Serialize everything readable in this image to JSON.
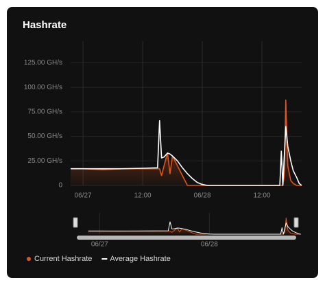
{
  "chart_data": {
    "type": "line",
    "title": "Hashrate",
    "x": [
      -2.5,
      0,
      4,
      8,
      12,
      15,
      15.4,
      15.8,
      16.3,
      17,
      17.5,
      18,
      19,
      20,
      21,
      22,
      23,
      24,
      25,
      30,
      35,
      39.3,
      39.6,
      39.9,
      40.2,
      40.5,
      40.8,
      41.2,
      41.8,
      42.3,
      43,
      43.5,
      44
    ],
    "series": [
      {
        "name": "Current Hashrate",
        "color": "#e0561c",
        "values": [
          17,
          17,
          16,
          17,
          17,
          17,
          17,
          10,
          20,
          33,
          12,
          30,
          20,
          10,
          0,
          0,
          0,
          0,
          0,
          0,
          0,
          0,
          0,
          0,
          0,
          10,
          87,
          20,
          5,
          2,
          0,
          0,
          0
        ]
      },
      {
        "name": "Average Hashrate",
        "color": "#ffffff",
        "values": [
          17,
          17,
          17,
          17,
          17.5,
          18,
          66,
          28,
          29,
          33,
          32,
          30,
          25,
          18,
          12,
          7,
          3,
          1,
          0,
          0,
          0,
          0,
          0,
          35,
          0,
          30,
          60,
          40,
          25,
          15,
          8,
          2,
          0
        ]
      }
    ],
    "xlim": [
      -2.5,
      44
    ],
    "xticks": [
      {
        "value": 0,
        "label": "06/27"
      },
      {
        "value": 12,
        "label": "12:00"
      },
      {
        "value": 24,
        "label": "06/28"
      },
      {
        "value": 36,
        "label": "12:00"
      }
    ],
    "ylim": [
      0,
      147
    ],
    "yticks": [
      0,
      {
        "value": 25,
        "label": "25.00 GH/s"
      },
      {
        "value": 50,
        "label": "50.00 GH/s"
      },
      {
        "value": 75,
        "label": "75.00 GH/s"
      },
      {
        "value": 100,
        "label": "100.00 GH/s"
      },
      {
        "value": 125,
        "label": "125.00 GH/s"
      }
    ],
    "grid": true,
    "legend": "bottom",
    "navigator": {
      "xlim": [
        -5,
        43
      ],
      "xticks": [
        {
          "value": 0,
          "label": "06/27"
        },
        {
          "value": 24,
          "label": "06/28"
        }
      ]
    }
  }
}
